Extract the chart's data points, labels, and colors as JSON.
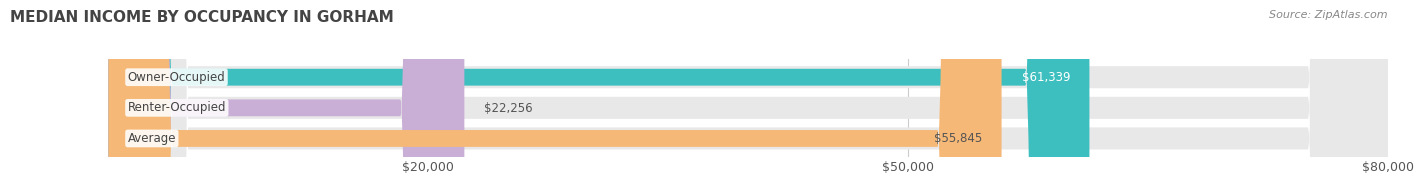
{
  "title": "MEDIAN INCOME BY OCCUPANCY IN GORHAM",
  "source": "Source: ZipAtlas.com",
  "categories": [
    "Owner-Occupied",
    "Renter-Occupied",
    "Average"
  ],
  "values": [
    61339,
    22256,
    55845
  ],
  "bar_colors": [
    "#3dbfbf",
    "#c9aed6",
    "#f5b877"
  ],
  "label_colors": [
    "#ffffff",
    "#555555",
    "#555555"
  ],
  "value_labels": [
    "$61,339",
    "$22,256",
    "$55,845"
  ],
  "xlim": [
    0,
    80000
  ],
  "xticks": [
    20000,
    50000,
    80000
  ],
  "xtick_labels": [
    "$20,000",
    "$50,000",
    "$80,000"
  ],
  "title_fontsize": 11,
  "tick_fontsize": 9,
  "bar_label_fontsize": 8.5,
  "value_label_fontsize": 8.5,
  "background_color": "#ffffff",
  "bar_bg_color": "#e8e8e8",
  "grid_color": "#cccccc"
}
